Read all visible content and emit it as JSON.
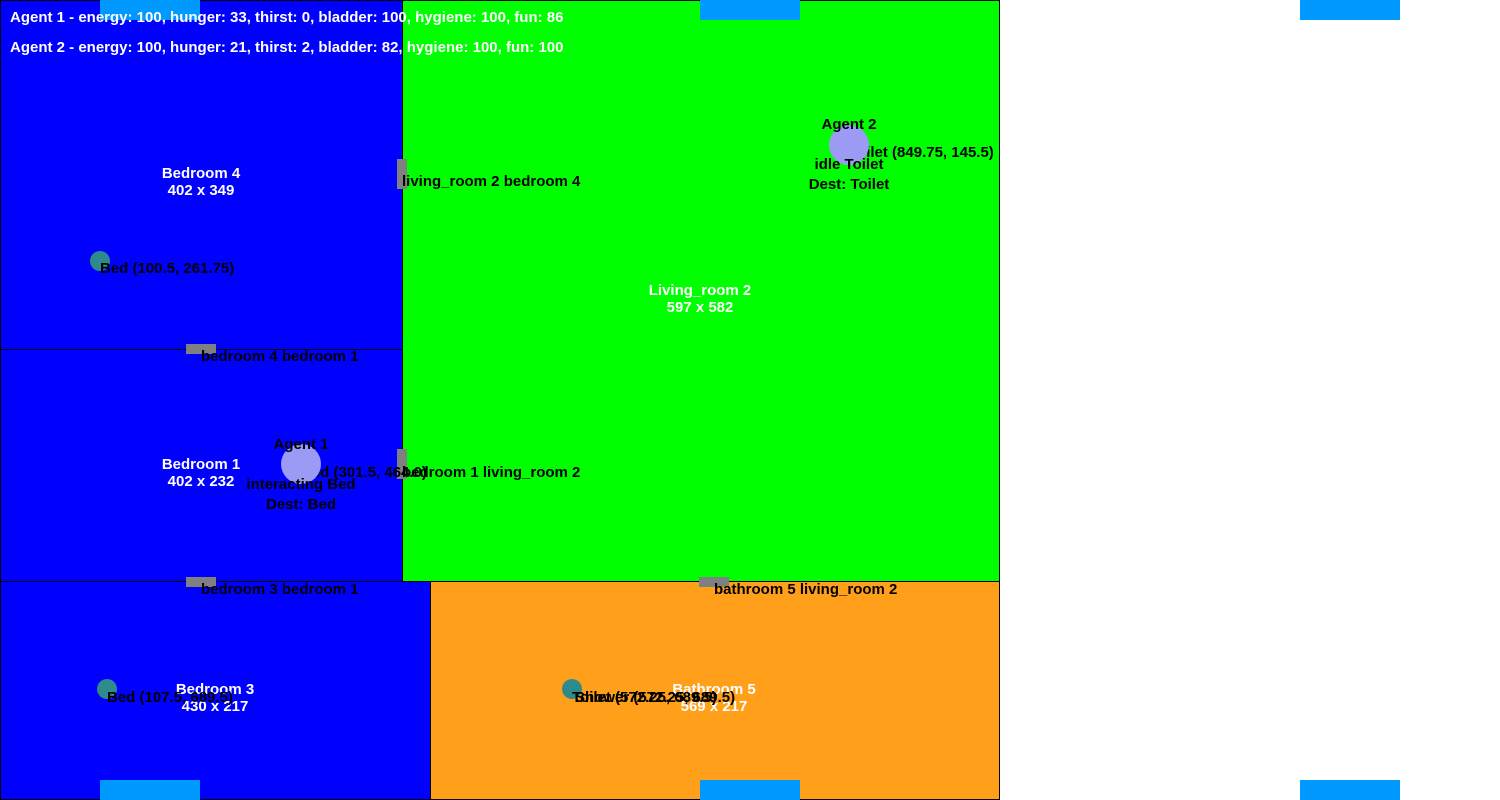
{
  "colors": {
    "bedroom": "#0000ff",
    "living_room": "#00ff00",
    "bathroom": "#ff9f1a",
    "door": "#808080",
    "object": "#2e8b8b",
    "agent": "#9b9bf5",
    "marker": "#0099ff"
  },
  "hud": {
    "agent1_stats": "Agent 1 - energy: 100, hunger: 33, thirst: 0, bladder: 100, hygiene: 100, fun: 86",
    "agent2_stats": "Agent 2 - energy: 100, hunger: 21, thirst: 2, bladder: 82, hygiene: 100, fun: 100"
  },
  "rooms": {
    "bedroom4": {
      "name": "Bedroom 4",
      "size": "402 x 349"
    },
    "living_room2": {
      "name": "Living_room 2",
      "size": "597 x 582"
    },
    "bedroom1": {
      "name": "Bedroom 1",
      "size": "402 x 232"
    },
    "bedroom3": {
      "name": "Bedroom 3",
      "size": "430 x 217"
    },
    "bathroom5": {
      "name": "Bathroom 5",
      "size": "569 x 217"
    }
  },
  "doors": {
    "lr2_br4": "living_room 2 bedroom 4",
    "br4_br1": "bedroom 4 bedroom 1",
    "br1_lr2": "bedroom 1 living_room 2",
    "br3_br1": "bedroom 3 bedroom 1",
    "bath5_lr2": "bathroom 5 living_room 2"
  },
  "objects": {
    "bed_br4": "Bed (100.5, 261.75)",
    "bed_br1": "Bed (301.5, 464.0)",
    "bed_br3": "Bed (107.5, 689.5)",
    "toilet_lr2": "Toilet (849.75, 145.5)",
    "toilet_bath5": "Toilet (572.25, 689.5)",
    "shower_bath5": "Shower (572.25, 689.5)"
  },
  "agents": {
    "agent1": {
      "name": "Agent 1",
      "state": "interacting Bed",
      "dest": "Dest: Bed"
    },
    "agent2": {
      "name": "Agent 2",
      "state": "idle Toilet",
      "dest": "Dest: Toilet"
    }
  }
}
